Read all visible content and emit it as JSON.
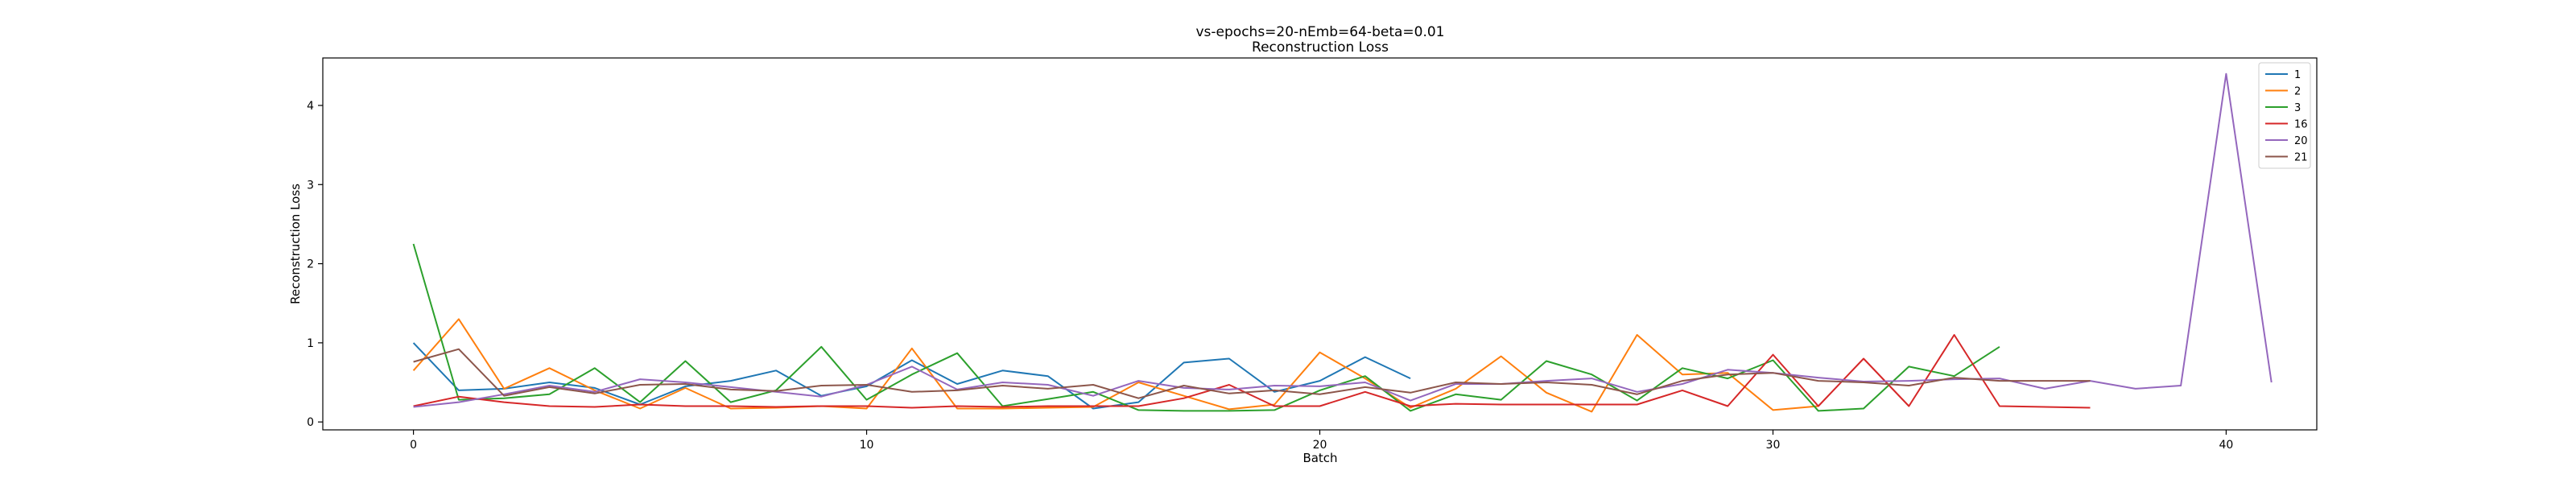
{
  "chart_data": {
    "type": "line",
    "title": "vs-epochs=20-nEmb=64-beta=0.01",
    "subtitle": "Reconstruction Loss",
    "xlabel": "Batch",
    "ylabel": "Reconstruction Loss",
    "xlim": [
      -2,
      42
    ],
    "ylim": [
      -0.1,
      4.6
    ],
    "xticks": [
      0,
      10,
      20,
      30,
      40
    ],
    "yticks": [
      0,
      1,
      2,
      3,
      4
    ],
    "legend_position": "top-right",
    "grid": false,
    "series": [
      {
        "name": "1",
        "color": "#1f77b4",
        "x": [
          0,
          1,
          2,
          3,
          4,
          5,
          6,
          7,
          8,
          9,
          10,
          11,
          12,
          13,
          14,
          15,
          16,
          17,
          18,
          19,
          20,
          21,
          22
        ],
        "values": [
          1.0,
          0.4,
          0.42,
          0.5,
          0.43,
          0.22,
          0.45,
          0.52,
          0.65,
          0.33,
          0.45,
          0.78,
          0.48,
          0.65,
          0.58,
          0.17,
          0.25,
          0.75,
          0.8,
          0.38,
          0.52,
          0.82,
          0.55
        ]
      },
      {
        "name": "2",
        "color": "#ff7f0e",
        "x": [
          0,
          1,
          2,
          3,
          4,
          5,
          6,
          7,
          8,
          9,
          10,
          11,
          12,
          13,
          14,
          15,
          16,
          17,
          18,
          19,
          20,
          21,
          22,
          23,
          24,
          25,
          26,
          27,
          28,
          29,
          30,
          31
        ],
        "values": [
          0.65,
          1.3,
          0.42,
          0.68,
          0.4,
          0.17,
          0.43,
          0.17,
          0.18,
          0.2,
          0.17,
          0.93,
          0.17,
          0.17,
          0.18,
          0.19,
          0.5,
          0.33,
          0.16,
          0.22,
          0.88,
          0.55,
          0.18,
          0.42,
          0.83,
          0.37,
          0.13,
          1.1,
          0.6,
          0.62,
          0.15,
          0.2
        ]
      },
      {
        "name": "3",
        "color": "#2ca02c",
        "x": [
          0,
          1,
          2,
          3,
          4,
          5,
          6,
          7,
          8,
          9,
          10,
          11,
          12,
          13,
          14,
          15,
          16,
          17,
          18,
          19,
          20,
          21,
          22,
          23,
          24,
          25,
          26,
          27,
          28,
          29,
          30,
          31,
          32,
          33,
          34,
          35
        ],
        "values": [
          2.25,
          0.28,
          0.3,
          0.35,
          0.68,
          0.25,
          0.77,
          0.25,
          0.4,
          0.95,
          0.28,
          0.6,
          0.87,
          0.2,
          0.29,
          0.38,
          0.15,
          0.14,
          0.14,
          0.15,
          0.4,
          0.58,
          0.14,
          0.35,
          0.28,
          0.77,
          0.6,
          0.27,
          0.68,
          0.55,
          0.78,
          0.14,
          0.17,
          0.7,
          0.58,
          0.95
        ]
      },
      {
        "name": "16",
        "color": "#d62728",
        "x": [
          0,
          1,
          2,
          3,
          4,
          5,
          6,
          7,
          8,
          9,
          10,
          11,
          12,
          13,
          14,
          15,
          16,
          17,
          18,
          19,
          20,
          21,
          22,
          23,
          24,
          25,
          26,
          27,
          28,
          29,
          30,
          31,
          32,
          33,
          34,
          35,
          37
        ],
        "values": [
          0.2,
          0.32,
          0.25,
          0.2,
          0.19,
          0.22,
          0.2,
          0.2,
          0.19,
          0.2,
          0.2,
          0.18,
          0.2,
          0.19,
          0.2,
          0.2,
          0.2,
          0.3,
          0.47,
          0.2,
          0.2,
          0.38,
          0.2,
          0.23,
          0.22,
          0.22,
          0.22,
          0.22,
          0.4,
          0.2,
          0.85,
          0.2,
          0.8,
          0.2,
          1.1,
          0.2,
          0.18
        ]
      },
      {
        "name": "20",
        "color": "#9467bd",
        "x": [
          0,
          1,
          2,
          3,
          4,
          5,
          6,
          7,
          8,
          9,
          10,
          11,
          12,
          13,
          14,
          15,
          16,
          17,
          18,
          19,
          20,
          21,
          22,
          23,
          24,
          25,
          26,
          27,
          28,
          29,
          30,
          31,
          32,
          33,
          34,
          35,
          36,
          37,
          38,
          39,
          40,
          41
        ],
        "values": [
          0.19,
          0.25,
          0.35,
          0.46,
          0.38,
          0.54,
          0.5,
          0.44,
          0.38,
          0.32,
          0.47,
          0.7,
          0.41,
          0.5,
          0.47,
          0.33,
          0.52,
          0.43,
          0.41,
          0.46,
          0.45,
          0.5,
          0.27,
          0.48,
          0.48,
          0.52,
          0.55,
          0.38,
          0.48,
          0.66,
          0.62,
          0.56,
          0.51,
          0.52,
          0.54,
          0.55,
          0.42,
          0.52,
          0.42,
          0.46,
          4.4,
          0.5
        ]
      },
      {
        "name": "21",
        "color": "#8c564b",
        "x": [
          0,
          1,
          2,
          3,
          4,
          5,
          6,
          7,
          8,
          9,
          10,
          11,
          12,
          13,
          14,
          15,
          16,
          17,
          18,
          19,
          20,
          21,
          22,
          23,
          24,
          25,
          26,
          27,
          28,
          29,
          30,
          31,
          32,
          33,
          34,
          35,
          36,
          37
        ],
        "values": [
          0.76,
          0.92,
          0.33,
          0.44,
          0.36,
          0.47,
          0.48,
          0.41,
          0.39,
          0.46,
          0.47,
          0.38,
          0.4,
          0.46,
          0.42,
          0.47,
          0.3,
          0.46,
          0.36,
          0.4,
          0.35,
          0.44,
          0.37,
          0.5,
          0.48,
          0.5,
          0.47,
          0.35,
          0.52,
          0.6,
          0.62,
          0.52,
          0.5,
          0.46,
          0.56,
          0.52,
          0.52,
          0.52
        ]
      }
    ]
  }
}
